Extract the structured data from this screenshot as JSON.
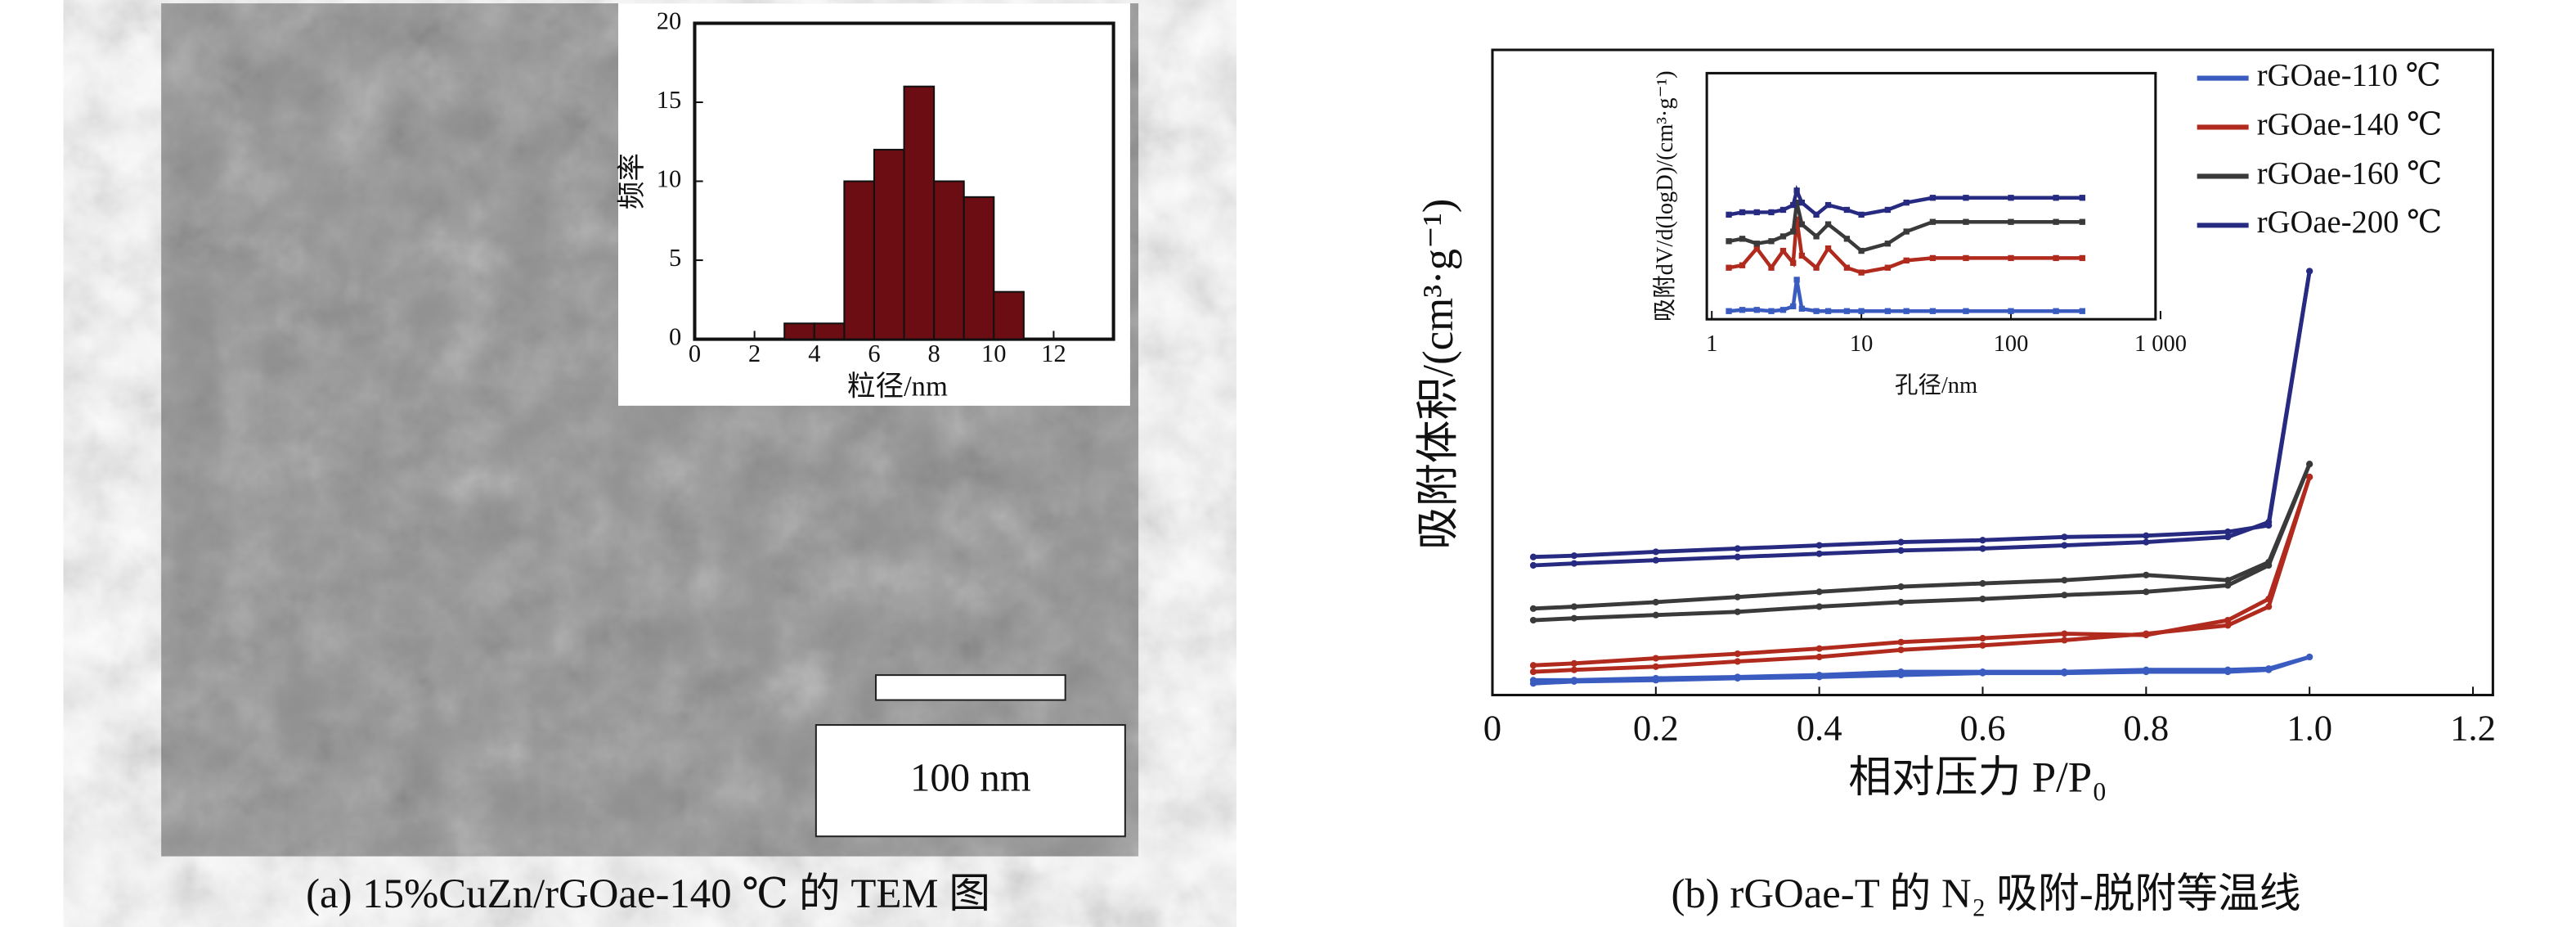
{
  "captions": [
    "(a) 15%CuZn/rGOae-140 ℃ 的 TEM 图",
    "(b) rGOae-T 的 N₂ 吸附-脱附等温线"
  ],
  "scale_bar_label": "100 nm",
  "chart_data": [
    {
      "type": "histogram",
      "x_label": "粒径/nm",
      "y_label": "频率",
      "bins": [
        3,
        4,
        5,
        6,
        7,
        8,
        9,
        10,
        11
      ],
      "values": [
        1,
        1,
        10,
        12,
        16,
        10,
        9,
        3
      ],
      "color": "#6b0d12",
      "xlim": [
        0,
        14
      ],
      "xticks": [
        0,
        2,
        4,
        6,
        8,
        10,
        12
      ],
      "ylim": [
        0,
        20
      ],
      "yticks": [
        0,
        5,
        10,
        15,
        20
      ]
    },
    {
      "type": "line",
      "x_label": "相对压力 P/P₀",
      "y_label": "吸附体积/(cm³·g⁻¹)",
      "x": [
        0.05,
        0.1,
        0.2,
        0.3,
        0.4,
        0.5,
        0.6,
        0.7,
        0.8,
        0.9,
        0.95,
        1
      ],
      "xlim": [
        0,
        1.2
      ],
      "xticks": [
        0,
        0.2,
        0.4,
        0.6,
        0.8,
        {
          "value": 1,
          "label": "1.0"
        },
        1.2
      ],
      "ylim": [
        0,
        100
      ],
      "series": [
        {
          "name": "rGOae-110 ℃",
          "color": "#3a5cc0",
          "values": [
            1.8,
            2.1,
            2.3,
            2.6,
            2.8,
            3.1,
            3.4,
            3.4,
            3.6,
            3.6,
            3.9,
            5.9
          ],
          "desorption_values": [
            2.3,
            2.3,
            2.6,
            2.8,
            3.1,
            3.6,
            3.6,
            3.6,
            3.9,
            3.9,
            4.1,
            5.9
          ]
        },
        {
          "name": "rGOae-140 ℃",
          "color": "#b02a1e",
          "values": [
            3.6,
            3.9,
            4.4,
            5.2,
            5.9,
            7,
            7.7,
            8.5,
            9.5,
            10.8,
            13.7,
            33.8
          ],
          "desorption_values": [
            4.6,
            4.9,
            5.7,
            6.4,
            7.2,
            8.2,
            8.8,
            9.5,
            9.3,
            11.6,
            14.9,
            33.8
          ]
        },
        {
          "name": "rGOae-160 ℃",
          "color": "#3a3a3a",
          "values": [
            11.6,
            11.9,
            12.4,
            12.9,
            13.7,
            14.4,
            14.9,
            15.5,
            16,
            17,
            20.1,
            35.8
          ],
          "desorption_values": [
            13.4,
            13.7,
            14.4,
            15.2,
            16,
            16.8,
            17.3,
            17.8,
            18.6,
            17.8,
            20.6,
            35.8
          ]
        },
        {
          "name": "rGOae-200 ℃",
          "color": "#262a80",
          "values": [
            20.1,
            20.4,
            20.9,
            21.4,
            21.9,
            22.4,
            22.7,
            23.2,
            23.7,
            24.5,
            26.8,
            65.7
          ],
          "desorption_values": [
            21.4,
            21.6,
            22.2,
            22.7,
            23.2,
            23.7,
            24,
            24.5,
            24.7,
            25.3,
            26.3,
            65.7
          ]
        }
      ]
    },
    {
      "type": "line",
      "log_x": true,
      "x_label": "孔径/nm",
      "y_label": "吸附dV/d(logD)/(cm³·g⁻¹)",
      "x": [
        1.3,
        1.6,
        2,
        2.5,
        3,
        3.5,
        3.7,
        4,
        5,
        6,
        8,
        10,
        15,
        20,
        30,
        50,
        100,
        200,
        300
      ],
      "xlim": [
        1,
        1000
      ],
      "xticks": [
        1,
        10,
        100,
        {
          "value": 1000,
          "label": "1 000"
        }
      ],
      "ylim": [
        0,
        100
      ],
      "series": [
        {
          "color": "#3a5cc0",
          "values": [
            2,
            2.5,
            2.5,
            2,
            2.5,
            4,
            15,
            3,
            2,
            2,
            2,
            2,
            2,
            2,
            2,
            2,
            2,
            2,
            2
          ]
        },
        {
          "color": "#b02a1e",
          "values": [
            20,
            21,
            28,
            20,
            27,
            22,
            40,
            25,
            20,
            28,
            20,
            18,
            20,
            23,
            24,
            24,
            24,
            24,
            24
          ]
        },
        {
          "color": "#3a3a3a",
          "values": [
            31,
            32,
            30,
            31,
            33,
            35,
            47,
            38,
            33,
            38,
            32,
            27,
            30,
            35,
            39,
            39,
            39,
            39,
            39
          ]
        },
        {
          "color": "#262a80",
          "values": [
            42,
            43,
            43,
            43,
            44,
            46,
            52,
            47,
            42,
            46,
            44,
            42,
            44,
            47,
            49,
            49,
            49,
            49,
            49
          ]
        }
      ]
    }
  ]
}
